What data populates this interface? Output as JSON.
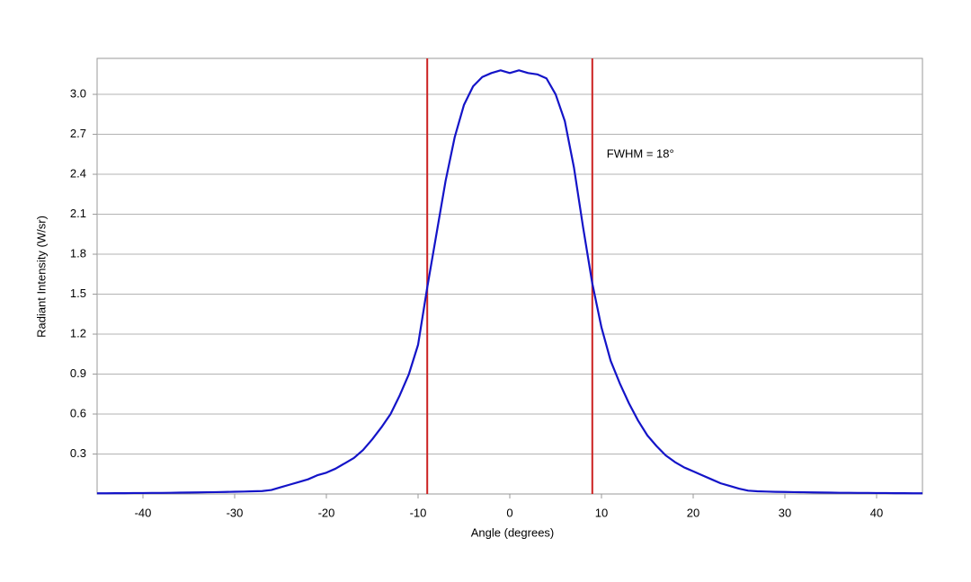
{
  "chart_data": {
    "type": "line",
    "x_label": "Angle (degrees)",
    "y_label": "Radiant Intensity (W/sr)",
    "annotation": "FWHM = 18°",
    "color": "#1414c8",
    "vlines": [
      -9,
      9
    ],
    "vline_color": "#cc2222",
    "grid": true,
    "xlim": [
      -45,
      45
    ],
    "xticks": [
      -40,
      -30,
      -20,
      -10,
      0,
      10,
      20,
      30,
      40
    ],
    "ylim": [
      0,
      3.27
    ],
    "yticks": [
      0.3,
      0.6,
      0.9,
      1.2,
      1.5,
      1.8,
      2.1,
      2.4,
      2.7,
      {
        "value": 3,
        "label": "3.0"
      }
    ],
    "x": [
      -45,
      -44,
      -43,
      -42,
      -41,
      -40,
      -39,
      -38,
      -37,
      -36,
      -35,
      -34,
      -33,
      -32,
      -31,
      -30,
      -29,
      -28,
      -27,
      -26,
      -25,
      -24,
      -23,
      -22,
      -21,
      -20,
      -19,
      -18,
      -17,
      -16,
      -15,
      -14,
      -13,
      -12,
      -11,
      -10,
      -9,
      -8,
      -7,
      -6,
      -5,
      -4,
      -3,
      -2,
      -1,
      0,
      1,
      2,
      3,
      4,
      5,
      6,
      7,
      8,
      9,
      10,
      11,
      12,
      13,
      14,
      15,
      16,
      17,
      18,
      19,
      20,
      21,
      22,
      23,
      24,
      25,
      26,
      27,
      28,
      29,
      30,
      31,
      32,
      33,
      34,
      35,
      36,
      37,
      38,
      39,
      40,
      41,
      42,
      43,
      44,
      45
    ],
    "values": [
      0.005,
      0.005,
      0.006,
      0.006,
      0.007,
      0.007,
      0.008,
      0.008,
      0.009,
      0.01,
      0.011,
      0.012,
      0.013,
      0.014,
      0.015,
      0.017,
      0.018,
      0.02,
      0.022,
      0.03,
      0.05,
      0.07,
      0.09,
      0.11,
      0.14,
      0.16,
      0.19,
      0.23,
      0.27,
      0.33,
      0.41,
      0.5,
      0.6,
      0.74,
      0.9,
      1.12,
      1.55,
      1.95,
      2.35,
      2.68,
      2.92,
      3.06,
      3.13,
      3.16,
      3.18,
      3.16,
      3.18,
      3.16,
      3.15,
      3.12,
      3.0,
      2.8,
      2.45,
      2.0,
      1.58,
      1.25,
      1.0,
      0.83,
      0.68,
      0.55,
      0.44,
      0.36,
      0.29,
      0.24,
      0.2,
      0.17,
      0.14,
      0.11,
      0.08,
      0.06,
      0.04,
      0.025,
      0.02,
      0.018,
      0.016,
      0.015,
      0.014,
      0.013,
      0.012,
      0.011,
      0.01,
      0.009,
      0.009,
      0.008,
      0.008,
      0.007,
      0.007,
      0.006,
      0.006,
      0.005,
      0.005
    ]
  }
}
